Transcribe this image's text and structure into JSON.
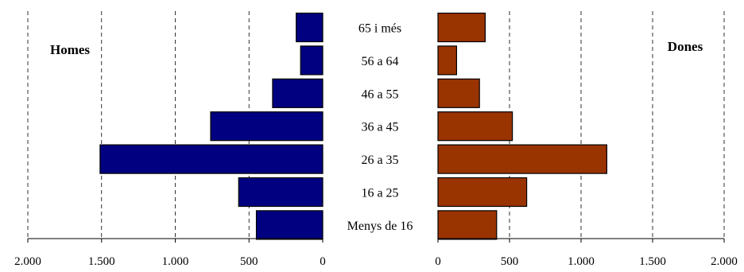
{
  "chart_data": {
    "type": "bar",
    "categories": [
      "65 i més",
      "56 a 64",
      "46 a 55",
      "36 a 45",
      "26 a 35",
      "16 a 25",
      "Menys de 16"
    ],
    "series": [
      {
        "name": "Homes",
        "values": [
          180,
          150,
          340,
          760,
          1510,
          570,
          450
        ],
        "color": "#000080"
      },
      {
        "name": "Dones",
        "values": [
          330,
          130,
          290,
          520,
          1180,
          620,
          410
        ],
        "color": "#993300"
      }
    ],
    "xlim": [
      0,
      2000
    ],
    "ticks": [
      "0",
      "500",
      "1.000",
      "1.500",
      "2.000"
    ],
    "tick_values": [
      0,
      500,
      1000,
      1500,
      2000
    ],
    "grid": true
  }
}
